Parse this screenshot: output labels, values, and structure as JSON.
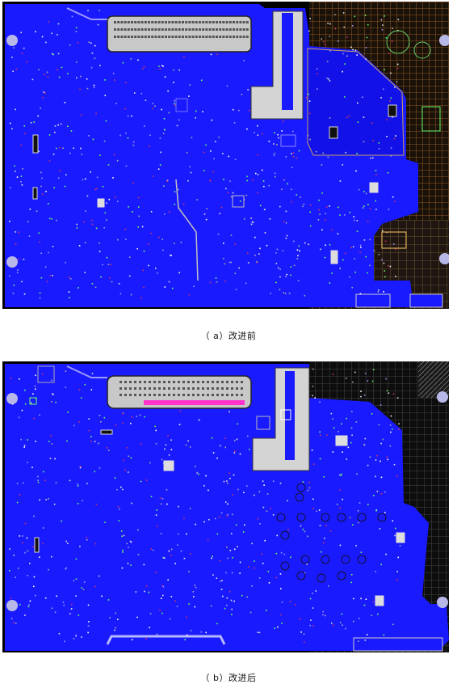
{
  "figures": [
    {
      "id": "a",
      "caption": "（ a）改进前",
      "board_color": "#1a1aff",
      "copper_color": "#c8c8c8",
      "grid_color": "#b06a30"
    },
    {
      "id": "b",
      "caption": "（ b）改进后",
      "board_color": "#1a1aff",
      "copper_color": "#c8c8c8",
      "grid_color": "#555555",
      "highlight_color": "#ff33cc"
    }
  ]
}
